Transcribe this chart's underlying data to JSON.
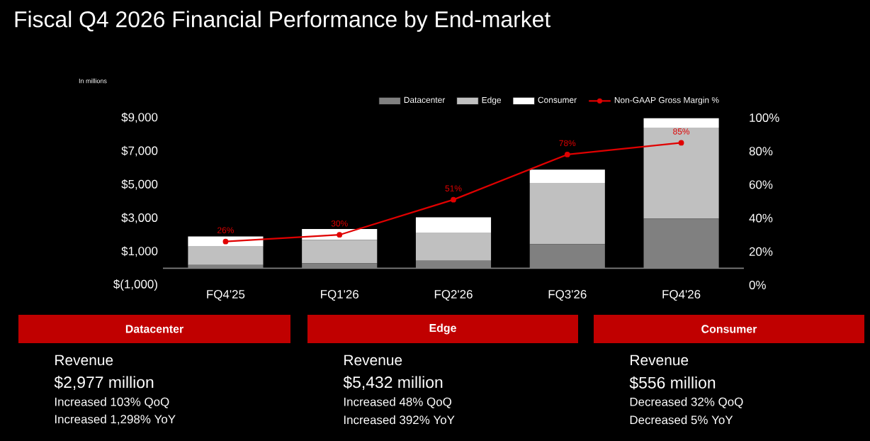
{
  "chart_data": {
    "type": "bar",
    "title": "Fiscal Q4 2026 Financial Performance by End-market",
    "categories": [
      "FQ4'25",
      "FQ1'26",
      "FQ2'26",
      "FQ3'26",
      "FQ4'26"
    ],
    "stacked": true,
    "series": [
      {
        "name": "Datacenter",
        "color": "#808080",
        "values": [
          200,
          300,
          450,
          1450,
          2977
        ]
      },
      {
        "name": "Edge",
        "color": "#c0c0c0",
        "values": [
          1100,
          1400,
          1650,
          3650,
          5432
        ]
      },
      {
        "name": "Consumer",
        "color": "#ffffff",
        "values": [
          600,
          650,
          950,
          800,
          556
        ]
      },
      {
        "name": "Non-GAAP Gross Margin %",
        "type": "line",
        "axis": "y2",
        "color": "#e00000",
        "values": [
          26,
          30,
          51,
          78,
          85
        ],
        "value_labels": [
          "26%",
          "30%",
          "51%",
          "78%",
          "85%"
        ]
      }
    ],
    "ylim": [
      -1000,
      9000
    ],
    "yticks": [
      {
        "value": -1000,
        "label": "$(1,000)"
      },
      {
        "value": 1000,
        "label": "$1,000"
      },
      {
        "value": 3000,
        "label": "$3,000"
      },
      {
        "value": 5000,
        "label": "$5,000"
      },
      {
        "value": 7000,
        "label": "$7,000"
      },
      {
        "value": 9000,
        "label": "$9,000"
      }
    ],
    "y2lim": [
      0,
      100
    ],
    "y2ticks": [
      {
        "value": 0,
        "label": "0%"
      },
      {
        "value": 20,
        "label": "20%"
      },
      {
        "value": 40,
        "label": "40%"
      },
      {
        "value": 60,
        "label": "60%"
      },
      {
        "value": 80,
        "label": "80%"
      },
      {
        "value": 100,
        "label": "100%"
      }
    ],
    "legend": "top right",
    "marker": "circle",
    "line_style": "solid",
    "annotations": [
      "In millions",
      "Datacenter",
      "Revenue",
      "$2,977 million",
      "Increased 103% QoQ",
      "Increased 1,298% YoY",
      "Edge",
      "Revenue",
      "$5,432 million",
      "Increased 48% QoQ",
      "Increased 392% YoY",
      "Consumer",
      "Revenue",
      "$556 million",
      "Decreased 32% QoQ",
      "Decreased 5% YoY"
    ]
  }
}
